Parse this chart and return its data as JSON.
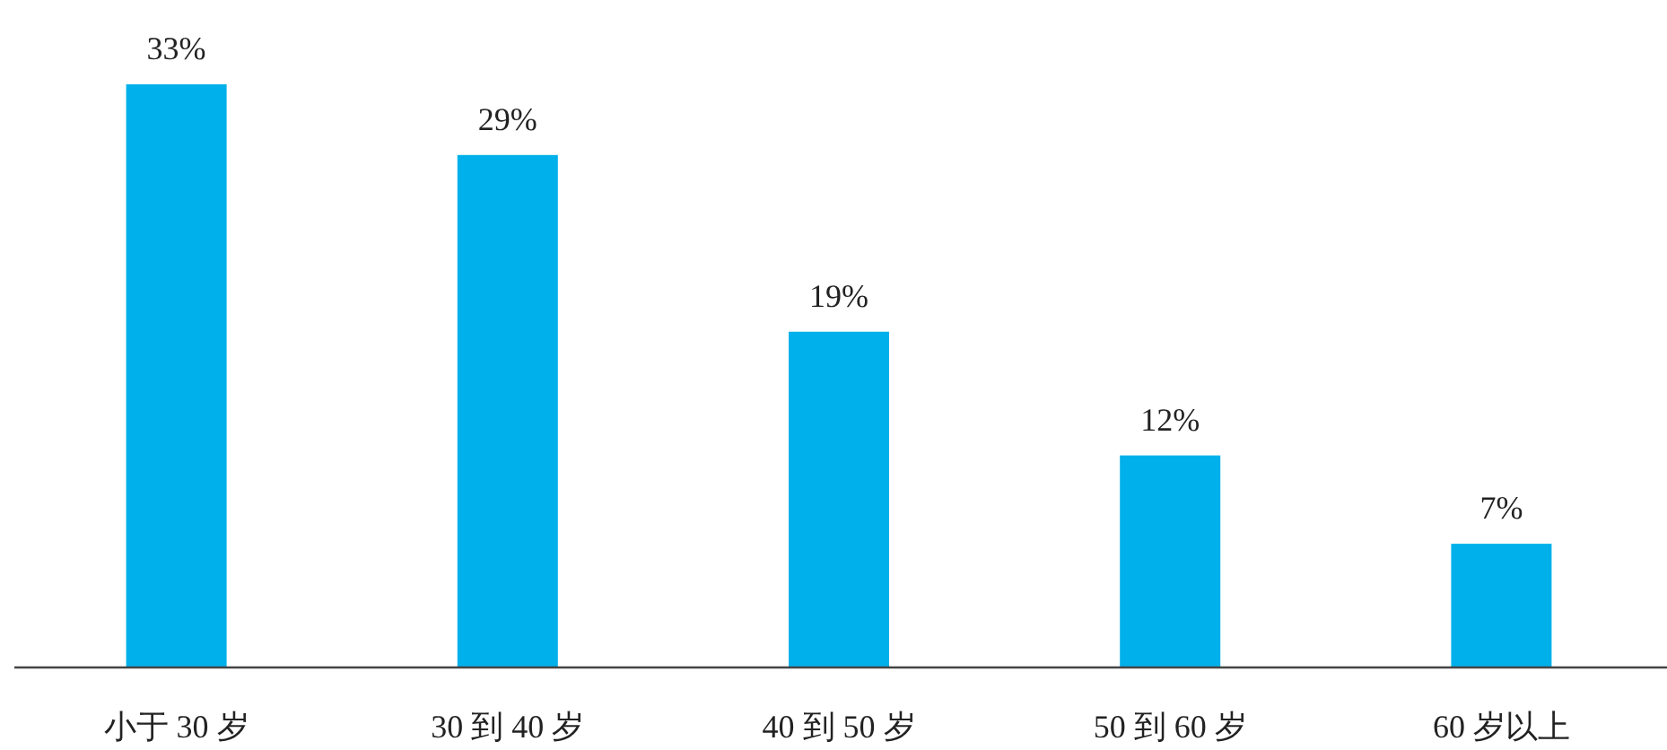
{
  "chart_data": {
    "type": "bar",
    "categories": [
      "小于 30 岁",
      "30 到 40 岁",
      "40 到 50 岁",
      "50 到 60 岁",
      "60 岁以上"
    ],
    "values": [
      33,
      29,
      19,
      12,
      7
    ],
    "value_labels": [
      "33%",
      "29%",
      "19%",
      "12%",
      "7%"
    ],
    "color": "#00b0ea"
  }
}
